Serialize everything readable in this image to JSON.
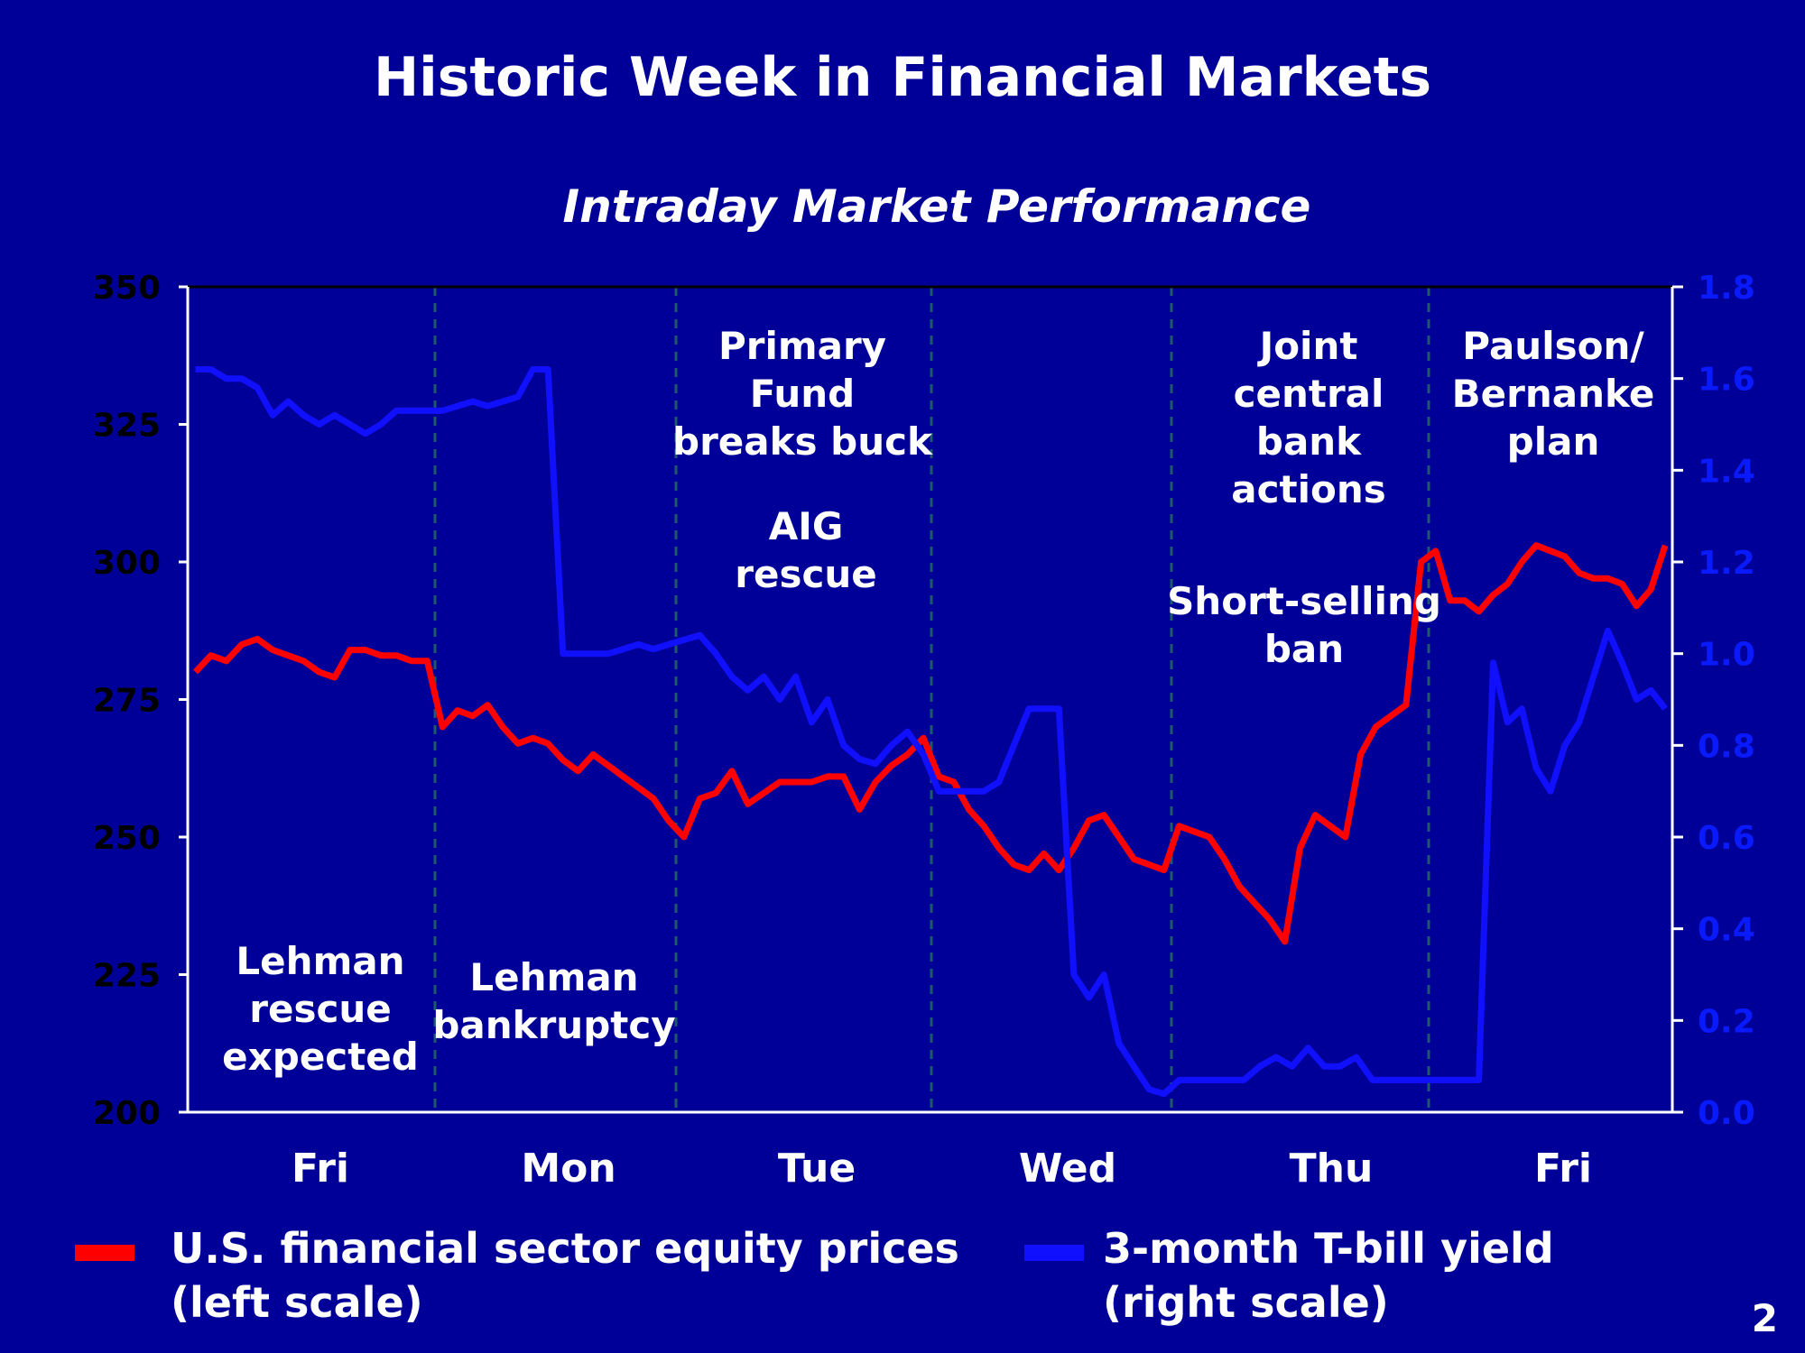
{
  "title": "Historic Week in Financial Markets",
  "page_number": "2",
  "colors": {
    "background": "#000099",
    "equity": "#ff0000",
    "tbill": "#1010ff",
    "text": "#ffffff"
  },
  "chart_data": {
    "type": "line",
    "subtitle": "Intraday Market Performance",
    "categories": [
      "Fri",
      "Mon",
      "Tue",
      "Wed",
      "Thu",
      "Fri"
    ],
    "left_axis": {
      "ylim": [
        200,
        350
      ],
      "ticks": [
        "200",
        "225",
        "250",
        "275",
        "300",
        "325",
        "350"
      ]
    },
    "right_axis": {
      "ylim": [
        0,
        1.8
      ],
      "ticks": [
        "0.0",
        "0.2",
        "0.4",
        "0.6",
        "0.8",
        "1.0",
        "1.2",
        "1.4",
        "1.6",
        "1.8"
      ]
    },
    "grid": "vertical dashed day separators",
    "legend_placement": "bottom",
    "series": [
      {
        "name": "U.S. financial sector equity prices (left scale)",
        "legend_lines": [
          "U.S. financial sector equity prices",
          "(left scale)"
        ],
        "axis": "left",
        "color": "#ff0000",
        "values_by_day": [
          [
            280,
            283,
            282,
            285,
            286,
            284,
            283,
            282,
            280,
            279,
            284,
            284,
            283,
            283,
            282,
            282
          ],
          [
            270,
            273,
            272,
            274,
            270,
            267,
            268,
            267,
            264,
            262,
            265,
            263,
            261,
            259,
            257,
            253
          ],
          [
            250,
            257,
            258,
            262,
            256,
            258,
            260,
            260,
            260,
            261,
            261,
            255,
            260,
            263,
            265,
            268
          ],
          [
            261,
            260,
            255,
            252,
            248,
            245,
            244,
            247,
            244,
            248,
            253,
            254,
            250,
            246,
            245,
            244
          ],
          [
            252,
            251,
            250,
            246,
            241,
            238,
            235,
            231,
            248,
            254,
            252,
            250,
            265,
            270,
            272,
            274,
            300
          ],
          [
            302,
            293,
            293,
            291,
            294,
            296,
            300,
            303,
            302,
            301,
            298,
            297,
            297,
            296,
            292,
            295,
            303
          ]
        ]
      },
      {
        "name": "3-month T-bill yield (right scale)",
        "legend_lines": [
          "3-month T-bill yield",
          "(right scale)"
        ],
        "axis": "right",
        "color": "#1010ff",
        "values_by_day": [
          [
            1.62,
            1.62,
            1.6,
            1.6,
            1.58,
            1.52,
            1.55,
            1.52,
            1.5,
            1.52,
            1.5,
            1.48,
            1.5,
            1.53,
            1.53,
            1.53
          ],
          [
            1.53,
            1.54,
            1.55,
            1.54,
            1.55,
            1.56,
            1.62,
            1.62,
            1.0,
            1.0,
            1.0,
            1.0,
            1.01,
            1.02,
            1.01,
            1.02
          ],
          [
            1.03,
            1.04,
            1.0,
            0.95,
            0.92,
            0.95,
            0.9,
            0.95,
            0.85,
            0.9,
            0.8,
            0.77,
            0.76,
            0.8,
            0.83,
            0.78
          ],
          [
            0.7,
            0.7,
            0.7,
            0.7,
            0.72,
            0.8,
            0.88,
            0.88,
            0.88,
            0.3,
            0.25,
            0.3,
            0.15,
            0.1,
            0.05,
            0.04
          ],
          [
            0.07,
            0.07,
            0.07,
            0.07,
            0.07,
            0.1,
            0.12,
            0.1,
            0.14,
            0.1,
            0.1,
            0.12,
            0.07,
            0.07,
            0.07,
            0.07
          ],
          [
            0.07,
            0.07,
            0.07,
            0.07,
            0.98,
            0.85,
            0.88,
            0.75,
            0.7,
            0.8,
            0.85,
            0.95,
            1.05,
            0.98,
            0.9,
            0.92,
            0.88
          ]
        ]
      }
    ],
    "annotations": [
      {
        "lines": [
          "Lehman",
          "rescue",
          "expected"
        ]
      },
      {
        "lines": [
          "Lehman",
          "bankruptcy"
        ]
      },
      {
        "lines": [
          "Primary",
          "Fund",
          "breaks buck"
        ]
      },
      {
        "lines": [
          "AIG",
          "rescue"
        ]
      },
      {
        "lines": [
          "Joint",
          "central",
          "bank",
          "actions"
        ]
      },
      {
        "lines": [
          "Short-selling",
          "ban"
        ]
      },
      {
        "lines": [
          "Paulson/",
          "Bernanke",
          "plan"
        ]
      }
    ]
  }
}
